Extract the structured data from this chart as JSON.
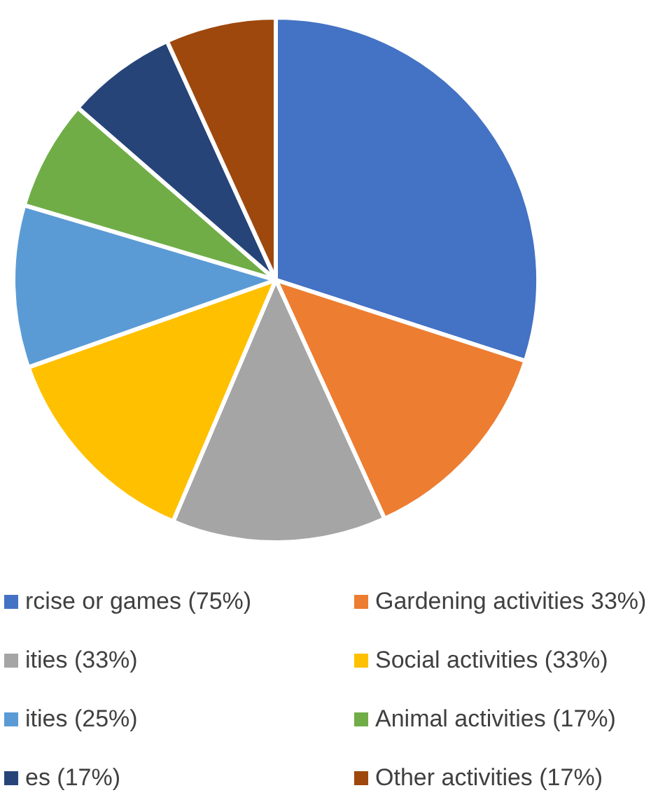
{
  "chart_data": {
    "type": "pie",
    "categories": [
      "rcise or games (75%)",
      "Gardening activities 33%)",
      "ities (33%)",
      "Social activities (33%)",
      "ities (25%)",
      "Animal activities (17%)",
      "es (17%)",
      "Other activities (17%)"
    ],
    "values": [
      75,
      33,
      33,
      33,
      25,
      17,
      17,
      17
    ],
    "colors": [
      "#4472c4",
      "#ed7d31",
      "#a5a5a5",
      "#ffc000",
      "#5b9bd5",
      "#70ad47",
      "#264478",
      "#9e480e"
    ],
    "legend": "bottom"
  }
}
